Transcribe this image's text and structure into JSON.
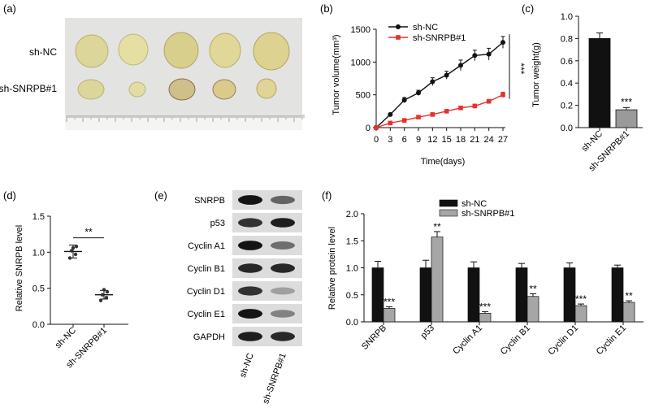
{
  "panels": {
    "a": {
      "label": "(a)",
      "row_labels": [
        "sh-NC",
        "sh-SNRPB#1"
      ]
    },
    "e": {
      "label": "(e)",
      "proteins": [
        "SNRPB",
        "p53",
        "Cyclin A1",
        "Cyclin B1",
        "Cyclin D1",
        "Cyclin E1",
        "GAPDH"
      ],
      "lanes": [
        "sh-NC",
        "sh-SNRPB#1"
      ],
      "band_intensity": [
        [
          0.95,
          0.55
        ],
        [
          0.8,
          0.9
        ],
        [
          0.95,
          0.5
        ],
        [
          0.85,
          0.85
        ],
        [
          0.8,
          0.25
        ],
        [
          0.95,
          0.4
        ],
        [
          0.9,
          0.85
        ]
      ]
    }
  },
  "chart_data": [
    {
      "id": "b",
      "panel_label": "(b)",
      "type": "line",
      "xlabel": "Time(days)",
      "ylabel": "Tumor volume(mm³)",
      "x": [
        0,
        3,
        6,
        9,
        12,
        15,
        18,
        21,
        24,
        27
      ],
      "xlim": [
        0,
        27
      ],
      "ylim": [
        0,
        1500
      ],
      "x_ticks": [
        0,
        3,
        6,
        9,
        12,
        15,
        18,
        21,
        24,
        27
      ],
      "y_ticks": [
        0,
        500,
        1000,
        1500
      ],
      "series": [
        {
          "name": "sh-NC",
          "color": "#111111",
          "marker": "circle",
          "values": [
            0,
            200,
            420,
            530,
            700,
            800,
            950,
            1100,
            1120,
            1300
          ],
          "errors": [
            0,
            20,
            40,
            40,
            60,
            60,
            80,
            80,
            90,
            90
          ]
        },
        {
          "name": "sh-SNRPB#1",
          "color": "#e8312c",
          "marker": "square",
          "values": [
            0,
            70,
            110,
            160,
            200,
            250,
            300,
            330,
            400,
            500
          ],
          "errors": [
            0,
            10,
            12,
            15,
            15,
            20,
            25,
            25,
            30,
            40
          ]
        }
      ],
      "significance": "***",
      "legend": "top-left"
    },
    {
      "id": "c",
      "panel_label": "(c)",
      "type": "bar",
      "ylabel": "Tumor weight(g)",
      "categories": [
        "sh-NC",
        "sh-SNRPB#1"
      ],
      "values": [
        0.8,
        0.16
      ],
      "errors": [
        0.05,
        0.02
      ],
      "colors": [
        "#111111",
        "#9a9a9a"
      ],
      "ylim": [
        0,
        1.0
      ],
      "y_ticks": [
        "0.0",
        "0.2",
        "0.4",
        "0.6",
        "0.8",
        "1.0"
      ],
      "annotations": [
        "",
        "***"
      ]
    },
    {
      "id": "d",
      "panel_label": "(d)",
      "type": "scatter",
      "ylabel": "Relative SNRPB level",
      "categories": [
        "sh-NC",
        "sh-SNRPB#1"
      ],
      "points": [
        [
          0.92,
          0.97,
          1.02,
          1.08,
          1.06
        ],
        [
          0.33,
          0.37,
          0.41,
          0.45,
          0.48
        ]
      ],
      "means": [
        1.01,
        0.41
      ],
      "sd": [
        0.09,
        0.06
      ],
      "ylim": [
        0,
        1.5
      ],
      "y_ticks": [
        "0.0",
        "0.5",
        "1.0",
        "1.5"
      ],
      "significance": "**"
    },
    {
      "id": "f",
      "panel_label": "(f)",
      "type": "bar",
      "ylabel": "Relative protein level",
      "categories": [
        "SNRPB",
        "p53",
        "Cyclin A1",
        "Cyclin B1",
        "Cyclin D1",
        "Cyclin E1"
      ],
      "ylim": [
        0,
        2.0
      ],
      "y_ticks": [
        "0.0",
        "0.5",
        "1.0",
        "1.5",
        "2.0"
      ],
      "legend": "top-center",
      "series": [
        {
          "name": "sh-NC",
          "color": "#111111",
          "values": [
            1.0,
            1.0,
            1.0,
            1.0,
            1.0,
            1.0
          ],
          "errors": [
            0.12,
            0.14,
            0.11,
            0.08,
            0.09,
            0.05
          ]
        },
        {
          "name": "sh-SNRPB#1",
          "color": "#a6a6a6",
          "values": [
            0.25,
            1.57,
            0.16,
            0.47,
            0.3,
            0.36
          ],
          "errors": [
            0.03,
            0.1,
            0.03,
            0.05,
            0.03,
            0.03
          ]
        }
      ],
      "annotations": [
        "***",
        "**",
        "***",
        "**",
        "***",
        "**"
      ]
    }
  ]
}
